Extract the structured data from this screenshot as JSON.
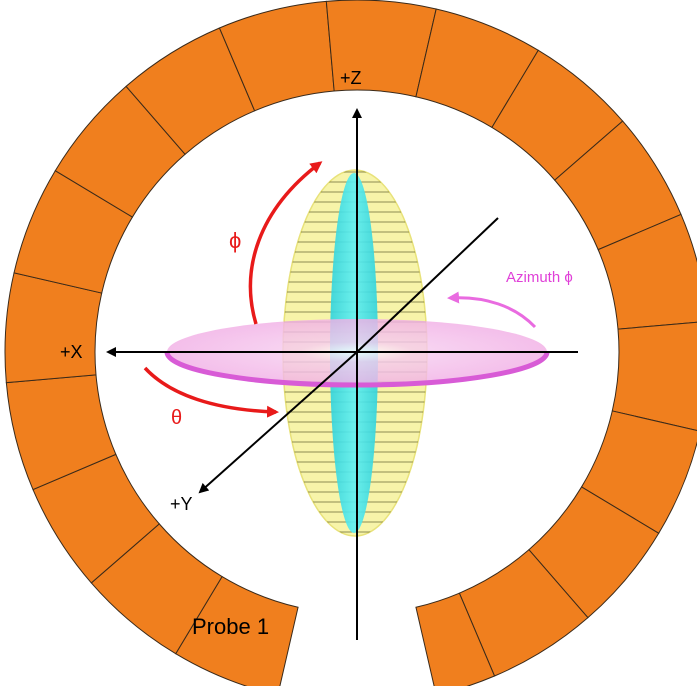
{
  "labels": {
    "z_axis": "+Z",
    "x_axis": "+X",
    "y_axis": "+Y",
    "phi_symbol": "ϕ",
    "theta_symbol": "θ",
    "azimuth": "Azimuth ϕ",
    "probe": "Probe 1"
  },
  "ring": {
    "segments": 20,
    "gap_segments": 1
  },
  "colors": {
    "ring": "#F07F1E",
    "ring_divider": "#3a2a1a",
    "ellipse_yellow": "#F6F29A",
    "ellipse_cyan": "#44E3E8",
    "disk_pink": "#F2B2E6",
    "disk_edge": "#D85BD6",
    "phi_arrow": "#E81A1A",
    "theta_arrow": "#E81A1A",
    "azimuth_arrow": "#E96BE0",
    "azimuth_text": "#E040D8",
    "axis": "#000000"
  }
}
